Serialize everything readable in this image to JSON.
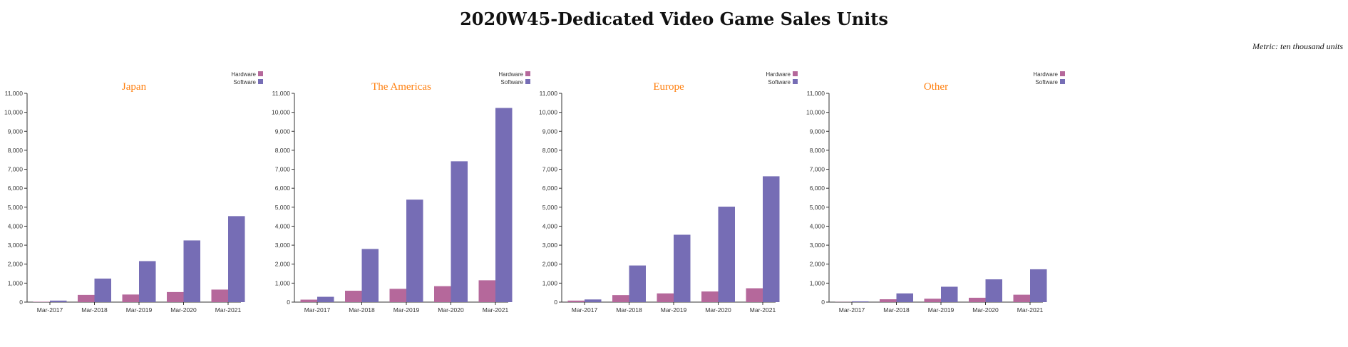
{
  "title": "2020W45-Dedicated Video Game Sales Units",
  "metric_note": "Metric: ten thousand units",
  "colors": {
    "hardware": "#b5689b",
    "software": "#766db5",
    "panel_title": "#ff7f0e",
    "axis": "#333333"
  },
  "chart_data": [
    {
      "type": "bar",
      "title": "Japan",
      "categories": [
        "Mar-2017",
        "Mar-2018",
        "Mar-2019",
        "Mar-2020",
        "Mar-2021"
      ],
      "series": [
        {
          "name": "Hardware",
          "values": [
            20,
            380,
            400,
            530,
            660
          ]
        },
        {
          "name": "Software",
          "values": [
            80,
            1240,
            2160,
            3250,
            4530
          ]
        }
      ],
      "ylim": [
        0,
        11000
      ],
      "yticks": [
        "0",
        "1,000",
        "2,000",
        "3,000",
        "4,000",
        "5,000",
        "6,000",
        "7,000",
        "8,000",
        "9,000",
        "10,000",
        "11,000"
      ],
      "legend": [
        "Hardware",
        "Software"
      ],
      "legend_position": "top-right"
    },
    {
      "type": "bar",
      "title": "The Americas",
      "categories": [
        "Mar-2017",
        "Mar-2018",
        "Mar-2019",
        "Mar-2020",
        "Mar-2021"
      ],
      "series": [
        {
          "name": "Hardware",
          "values": [
            130,
            600,
            700,
            840,
            1150
          ]
        },
        {
          "name": "Software",
          "values": [
            280,
            2800,
            5400,
            7420,
            10230
          ]
        }
      ],
      "ylim": [
        0,
        11000
      ],
      "yticks": [
        "0",
        "1,000",
        "2,000",
        "3,000",
        "4,000",
        "5,000",
        "6,000",
        "7,000",
        "8,000",
        "9,000",
        "10,000",
        "11,000"
      ],
      "legend": [
        "Hardware",
        "Software"
      ],
      "legend_position": "top-right"
    },
    {
      "type": "bar",
      "title": "Europe",
      "categories": [
        "Mar-2017",
        "Mar-2018",
        "Mar-2019",
        "Mar-2020",
        "Mar-2021"
      ],
      "series": [
        {
          "name": "Hardware",
          "values": [
            80,
            370,
            460,
            560,
            730
          ]
        },
        {
          "name": "Software",
          "values": [
            140,
            1930,
            3550,
            5030,
            6630
          ]
        }
      ],
      "ylim": [
        0,
        11000
      ],
      "yticks": [
        "0",
        "1,000",
        "2,000",
        "3,000",
        "4,000",
        "5,000",
        "6,000",
        "7,000",
        "8,000",
        "9,000",
        "10,000",
        "11,000"
      ],
      "legend": [
        "Hardware",
        "Software"
      ],
      "legend_position": "top-right"
    },
    {
      "type": "bar",
      "title": "Other",
      "categories": [
        "Mar-2017",
        "Mar-2018",
        "Mar-2019",
        "Mar-2020",
        "Mar-2021"
      ],
      "series": [
        {
          "name": "Hardware",
          "values": [
            10,
            150,
            180,
            230,
            390
          ]
        },
        {
          "name": "Software",
          "values": [
            40,
            460,
            810,
            1200,
            1730
          ]
        }
      ],
      "ylim": [
        0,
        11000
      ],
      "yticks": [
        "0",
        "1,000",
        "2,000",
        "3,000",
        "4,000",
        "5,000",
        "6,000",
        "7,000",
        "8,000",
        "9,000",
        "10,000",
        "11,000"
      ],
      "legend": [
        "Hardware",
        "Software"
      ],
      "legend_position": "top-right"
    }
  ]
}
